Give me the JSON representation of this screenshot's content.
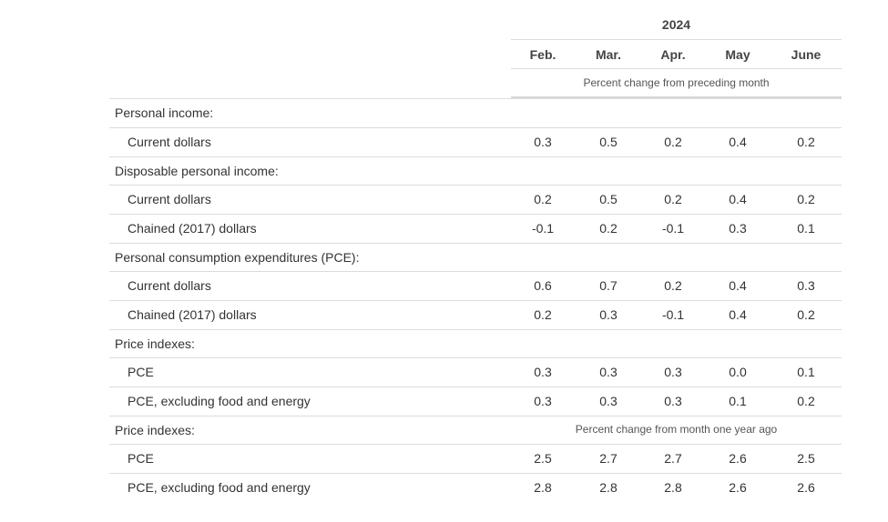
{
  "header": {
    "year": "2024",
    "months": [
      "Feb.",
      "Mar.",
      "Apr.",
      "May",
      "June"
    ],
    "note_monthly": "Percent change from preceding month",
    "note_yearly": "Percent change from month one year ago"
  },
  "rows": [
    {
      "label": "Personal income:",
      "indent": false,
      "values": []
    },
    {
      "label": "Current dollars",
      "indent": true,
      "values": [
        "0.3",
        "0.5",
        "0.2",
        "0.4",
        "0.2"
      ]
    },
    {
      "label": "Disposable personal income:",
      "indent": false,
      "values": []
    },
    {
      "label": "Current dollars",
      "indent": true,
      "values": [
        "0.2",
        "0.5",
        "0.2",
        "0.4",
        "0.2"
      ]
    },
    {
      "label": "Chained (2017) dollars",
      "indent": true,
      "values": [
        "-0.1",
        "0.2",
        "-0.1",
        "0.3",
        "0.1"
      ]
    },
    {
      "label": "Personal consumption expenditures (PCE):",
      "indent": false,
      "values": []
    },
    {
      "label": "Current dollars",
      "indent": true,
      "values": [
        "0.6",
        "0.7",
        "0.2",
        "0.4",
        "0.3"
      ]
    },
    {
      "label": "Chained (2017) dollars",
      "indent": true,
      "values": [
        "0.2",
        "0.3",
        "-0.1",
        "0.4",
        "0.2"
      ]
    },
    {
      "label": "Price indexes:",
      "indent": false,
      "values": []
    },
    {
      "label": "PCE",
      "indent": true,
      "values": [
        "0.3",
        "0.3",
        "0.3",
        "0.0",
        "0.1"
      ]
    },
    {
      "label": "PCE, excluding food and energy",
      "indent": true,
      "values": [
        "0.3",
        "0.3",
        "0.3",
        "0.1",
        "0.2"
      ]
    },
    {
      "label": "Price indexes:",
      "indent": false,
      "values": [],
      "note": "note_yearly"
    },
    {
      "label": "PCE",
      "indent": true,
      "values": [
        "2.5",
        "2.7",
        "2.7",
        "2.6",
        "2.5"
      ]
    },
    {
      "label": "PCE, excluding food and energy",
      "indent": true,
      "values": [
        "2.8",
        "2.8",
        "2.8",
        "2.6",
        "2.6"
      ]
    }
  ]
}
